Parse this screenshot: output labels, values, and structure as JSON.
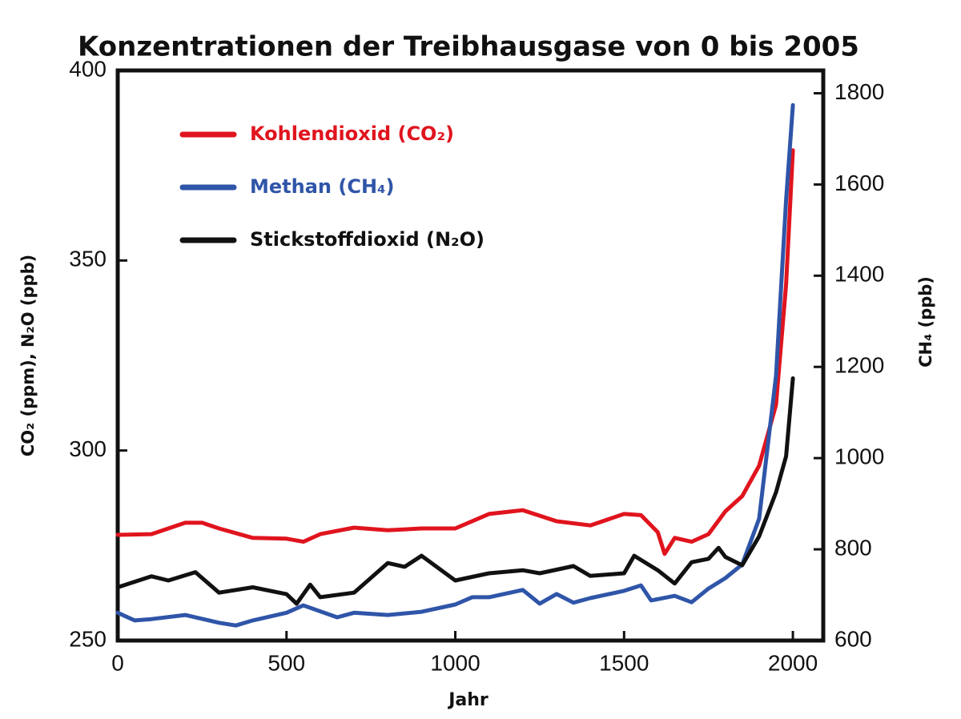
{
  "chart_data": {
    "type": "line",
    "title": "Konzentrationen  der Treibhausgase von 0 bis 2005",
    "xlabel": "Jahr",
    "ylabel": "CO₂ (ppm),  N₂O (ppb)",
    "y2label": "CH₄ (ppb)",
    "xlim": [
      0,
      2090
    ],
    "xticks": [
      0,
      500,
      1000,
      1500,
      2000
    ],
    "ylim": [
      250,
      400
    ],
    "yticks": [
      250,
      300,
      350,
      400
    ],
    "y2lim": [
      600,
      1850
    ],
    "y2ticks": [
      600,
      800,
      1000,
      1200,
      1400,
      1600,
      1800
    ],
    "legend": "upper left",
    "series": [
      {
        "name": "Kohlendioxid (CO₂)",
        "color": "#e0141e",
        "axis": "y",
        "x": [
          0,
          100,
          200,
          250,
          300,
          400,
          500,
          550,
          600,
          700,
          800,
          900,
          1000,
          1100,
          1200,
          1300,
          1400,
          1500,
          1550,
          1600,
          1620,
          1650,
          1700,
          1750,
          1800,
          1850,
          1900,
          1950,
          1980,
          2000
        ],
        "values": [
          277.8,
          278,
          281,
          281,
          279.5,
          277,
          276.8,
          276,
          278,
          279.7,
          279,
          279.5,
          279.5,
          283.3,
          284.3,
          281.4,
          280.3,
          283.3,
          283,
          278.5,
          272.8,
          277,
          276,
          278,
          284,
          288,
          296,
          312,
          343.7,
          379
        ]
      },
      {
        "name": "Methan (CH₄)",
        "color": "#2f55a8",
        "axis": "y2",
        "x": [
          0,
          50,
          100,
          200,
          300,
          350,
          400,
          500,
          550,
          650,
          700,
          800,
          900,
          1000,
          1050,
          1100,
          1200,
          1250,
          1300,
          1350,
          1400,
          1500,
          1550,
          1580,
          1650,
          1700,
          1750,
          1800,
          1850,
          1900,
          1950,
          1980,
          2000
        ],
        "values": [
          661,
          644,
          647,
          656,
          639,
          633,
          644,
          661,
          677,
          651,
          661,
          656,
          663,
          679,
          695,
          695,
          711,
          681,
          702,
          683,
          693,
          709,
          721,
          688,
          698,
          684,
          714,
          737,
          767,
          867,
          1180,
          1566,
          1774
        ]
      },
      {
        "name": "Stickstoffdioxid (N₂O)",
        "color": "#111111",
        "axis": "y",
        "x": [
          0,
          100,
          150,
          230,
          300,
          400,
          500,
          530,
          570,
          600,
          700,
          800,
          850,
          900,
          1000,
          1100,
          1200,
          1250,
          1350,
          1400,
          1500,
          1530,
          1600,
          1650,
          1700,
          1750,
          1780,
          1800,
          1850,
          1900,
          1950,
          1980,
          2000
        ],
        "values": [
          264,
          266.9,
          265.8,
          268,
          262.6,
          264,
          262.2,
          259.7,
          264.7,
          261.4,
          262.6,
          270.4,
          269.4,
          272.3,
          265.8,
          267.7,
          268.5,
          267.7,
          269.6,
          267,
          267.7,
          272.3,
          268.5,
          265,
          270.6,
          271.5,
          274.4,
          272,
          269.8,
          277.4,
          289,
          298.5,
          319
        ]
      }
    ]
  }
}
